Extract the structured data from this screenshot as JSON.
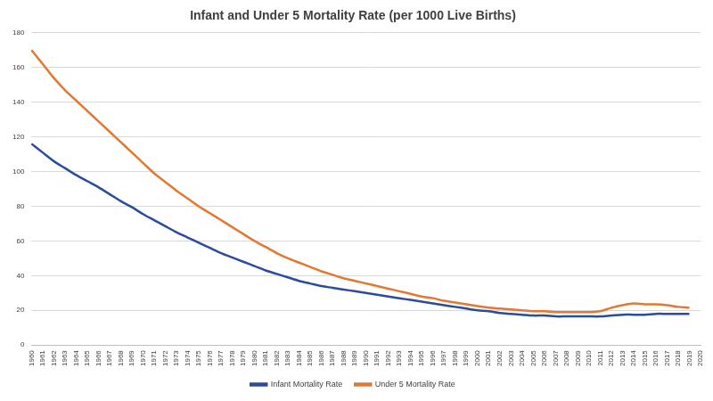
{
  "chart_data": {
    "type": "line",
    "title": "Infant and Under 5 Mortality Rate (per 1000 Live Births)",
    "categories": [
      "1960",
      "1961",
      "1962",
      "1963",
      "1964",
      "1965",
      "1966",
      "1967",
      "1968",
      "1969",
      "1970",
      "1971",
      "1972",
      "1973",
      "1974",
      "1975",
      "1976",
      "1977",
      "1978",
      "1979",
      "1980",
      "1981",
      "1982",
      "1983",
      "1984",
      "1985",
      "1986",
      "1987",
      "1988",
      "1989",
      "1990",
      "1991",
      "1992",
      "1993",
      "1994",
      "1995",
      "1996",
      "1997",
      "1998",
      "1999",
      "2000",
      "2001",
      "2002",
      "2003",
      "2004",
      "2005",
      "2006",
      "2007",
      "2008",
      "2009",
      "2010",
      "2011",
      "2012",
      "2013",
      "2014",
      "2015",
      "2016",
      "2017",
      "2018",
      "2019",
      "2020"
    ],
    "series": [
      {
        "name": "Infant Mortality Rate",
        "color": "#2B4C9B",
        "values": [
          116,
          111,
          106,
          102,
          98,
          94.5,
          91,
          87,
          83,
          79.5,
          75.5,
          72,
          68.5,
          65,
          62,
          59,
          56,
          53,
          50.5,
          48,
          45.5,
          43,
          41,
          39,
          37,
          35.5,
          34,
          33,
          32,
          31,
          30,
          29,
          28,
          27,
          26,
          25,
          24,
          23,
          22,
          21,
          20,
          19.5,
          18.5,
          18,
          17.5,
          17,
          17,
          16.5,
          16.5,
          16.5,
          16.5,
          16.5,
          17,
          17.5,
          17.5,
          17.5,
          18,
          18,
          18,
          18,
          null
        ]
      },
      {
        "name": "Under 5 Mortality Rate",
        "color": "#E5772E",
        "values": [
          170,
          162,
          154,
          147,
          141,
          135,
          129,
          123,
          117,
          111,
          105,
          99,
          94,
          89,
          84.5,
          80,
          76,
          72,
          68,
          64,
          60,
          56.5,
          53,
          50,
          47.5,
          45,
          42.5,
          40.5,
          38.5,
          37,
          35.5,
          34,
          32.5,
          31,
          29.5,
          28,
          27,
          25.5,
          24.5,
          23.5,
          22.5,
          21.5,
          21,
          20.5,
          20,
          19.5,
          19.5,
          19,
          19,
          19,
          19,
          19.5,
          21.5,
          23,
          24,
          23.5,
          23.5,
          23,
          22,
          21.5,
          null
        ]
      }
    ],
    "ylim": [
      0,
      180
    ],
    "yticks": [
      0,
      20,
      40,
      60,
      80,
      100,
      120,
      140,
      160,
      180
    ],
    "grid": true,
    "legend": "bottom"
  }
}
